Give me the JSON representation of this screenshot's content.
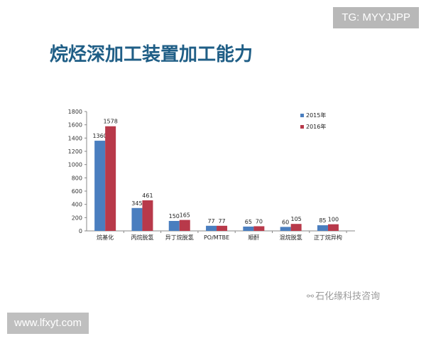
{
  "header": {
    "title": "烷烃深加工装置加工能力"
  },
  "overlays": {
    "tag": "TG: MYYJJPP",
    "site": "www.lfxyt.com",
    "watermark": "石化缘科技咨询",
    "watermark_icon": "wechat-icon"
  },
  "colors": {
    "series_2015": "#4a7ebf",
    "series_2016": "#b8394a",
    "title": "#1f5e86",
    "axis": "#888888"
  },
  "chart_data": {
    "type": "bar",
    "categories": [
      "烷基化",
      "丙烷脱氢",
      "异丁烷脱氢",
      "PO/MTBE",
      "顺酐",
      "混烷脱氢",
      "正丁烷异构"
    ],
    "series": [
      {
        "name": "2015年",
        "values": [
          1360,
          345,
          150,
          77,
          65,
          60,
          85
        ],
        "labels": [
          "1360",
          "345",
          "150",
          "77",
          "65",
          "60",
          "85"
        ]
      },
      {
        "name": "2016年",
        "values": [
          1578,
          461,
          165,
          77,
          70,
          105,
          100
        ],
        "labels": [
          "1578",
          "461",
          "165",
          "77",
          "70",
          "105",
          "100"
        ]
      }
    ],
    "yticks": [
      "0",
      "200",
      "400",
      "600",
      "800",
      "1000",
      "1200",
      "1400",
      "1600",
      "1800"
    ],
    "ylim": [
      0,
      1800
    ],
    "grid": false,
    "legend": "top-right"
  }
}
